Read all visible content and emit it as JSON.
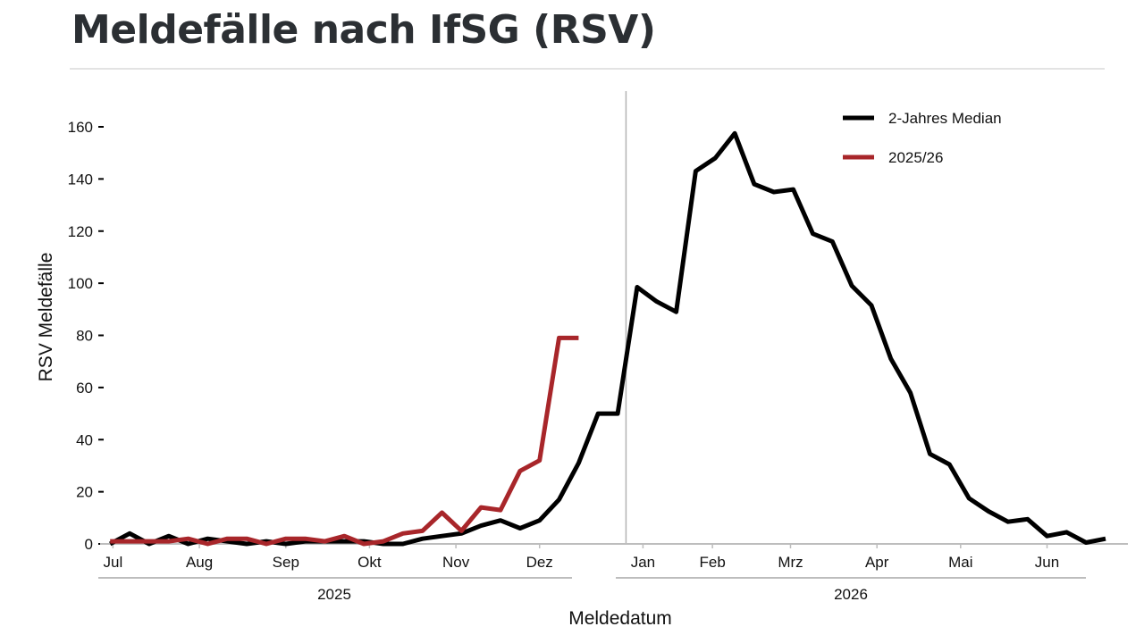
{
  "header": {
    "title": "Meldefälle nach IfSG (RSV)"
  },
  "chart_data": {
    "type": "line",
    "title": "Meldefälle nach IfSG (RSV)",
    "xlabel": "Meldedatum",
    "ylabel": "RSV Meldefälle",
    "ylim": [
      0,
      170
    ],
    "yticks": [
      0,
      20,
      40,
      60,
      80,
      100,
      120,
      140,
      160
    ],
    "grid": false,
    "legend_position": "top-right",
    "x_month_labels": [
      "Jul",
      "Aug",
      "Sep",
      "Okt",
      "Nov",
      "Dez",
      "Jan",
      "Feb",
      "Mrz",
      "Apr",
      "Mai",
      "Jun"
    ],
    "x_year_labels": [
      "2025",
      "2026"
    ],
    "year_boundary": "2026-01-01",
    "series": [
      {
        "name": "2-Jahres Median",
        "color": "#000000",
        "dates": [
          "2025-06-30",
          "2025-07-07",
          "2025-07-14",
          "2025-07-21",
          "2025-07-28",
          "2025-08-04",
          "2025-08-11",
          "2025-08-18",
          "2025-08-25",
          "2025-09-01",
          "2025-09-08",
          "2025-09-15",
          "2025-09-22",
          "2025-09-29",
          "2025-10-06",
          "2025-10-13",
          "2025-10-20",
          "2025-10-27",
          "2025-11-03",
          "2025-11-10",
          "2025-11-17",
          "2025-11-24",
          "2025-12-01",
          "2025-12-08",
          "2025-12-15",
          "2025-12-22",
          "2025-12-29",
          "2026-01-05",
          "2026-01-12",
          "2026-01-19",
          "2026-01-26",
          "2026-02-02",
          "2026-02-09",
          "2026-02-16",
          "2026-02-23",
          "2026-03-02",
          "2026-03-09",
          "2026-03-16",
          "2026-03-23",
          "2026-03-30",
          "2026-04-06",
          "2026-04-13",
          "2026-04-20",
          "2026-04-27",
          "2026-05-04",
          "2026-05-11",
          "2026-05-18",
          "2026-05-25",
          "2026-06-01",
          "2026-06-08",
          "2026-06-15",
          "2026-06-22"
        ],
        "values": [
          0,
          4,
          0,
          3,
          0,
          2,
          1,
          0,
          1,
          0,
          1,
          1,
          1,
          1,
          0,
          0,
          2,
          3,
          4,
          7,
          9,
          6,
          9,
          17,
          31,
          50,
          50,
          98.5,
          93,
          89,
          143,
          148,
          157.5,
          138,
          135,
          136,
          119,
          116,
          99,
          91.5,
          71,
          58,
          34.5,
          30.5,
          17.5,
          12.5,
          8.5,
          9.5,
          3,
          4.5,
          0.5,
          2
        ]
      },
      {
        "name": "2025/26",
        "color": "#a8262a",
        "dates": [
          "2025-06-30",
          "2025-07-07",
          "2025-07-14",
          "2025-07-21",
          "2025-07-28",
          "2025-08-04",
          "2025-08-11",
          "2025-08-18",
          "2025-08-25",
          "2025-09-01",
          "2025-09-08",
          "2025-09-15",
          "2025-09-22",
          "2025-09-29",
          "2025-10-06",
          "2025-10-13",
          "2025-10-20",
          "2025-10-27",
          "2025-11-03",
          "2025-11-10",
          "2025-11-17",
          "2025-11-24",
          "2025-12-01",
          "2025-12-08",
          "2025-12-15"
        ],
        "values": [
          1,
          1,
          1,
          1,
          2,
          0,
          2,
          2,
          0,
          2,
          2,
          1,
          3,
          0,
          1,
          4,
          5,
          12,
          5,
          14,
          13,
          28,
          32,
          79,
          79
        ]
      }
    ]
  }
}
